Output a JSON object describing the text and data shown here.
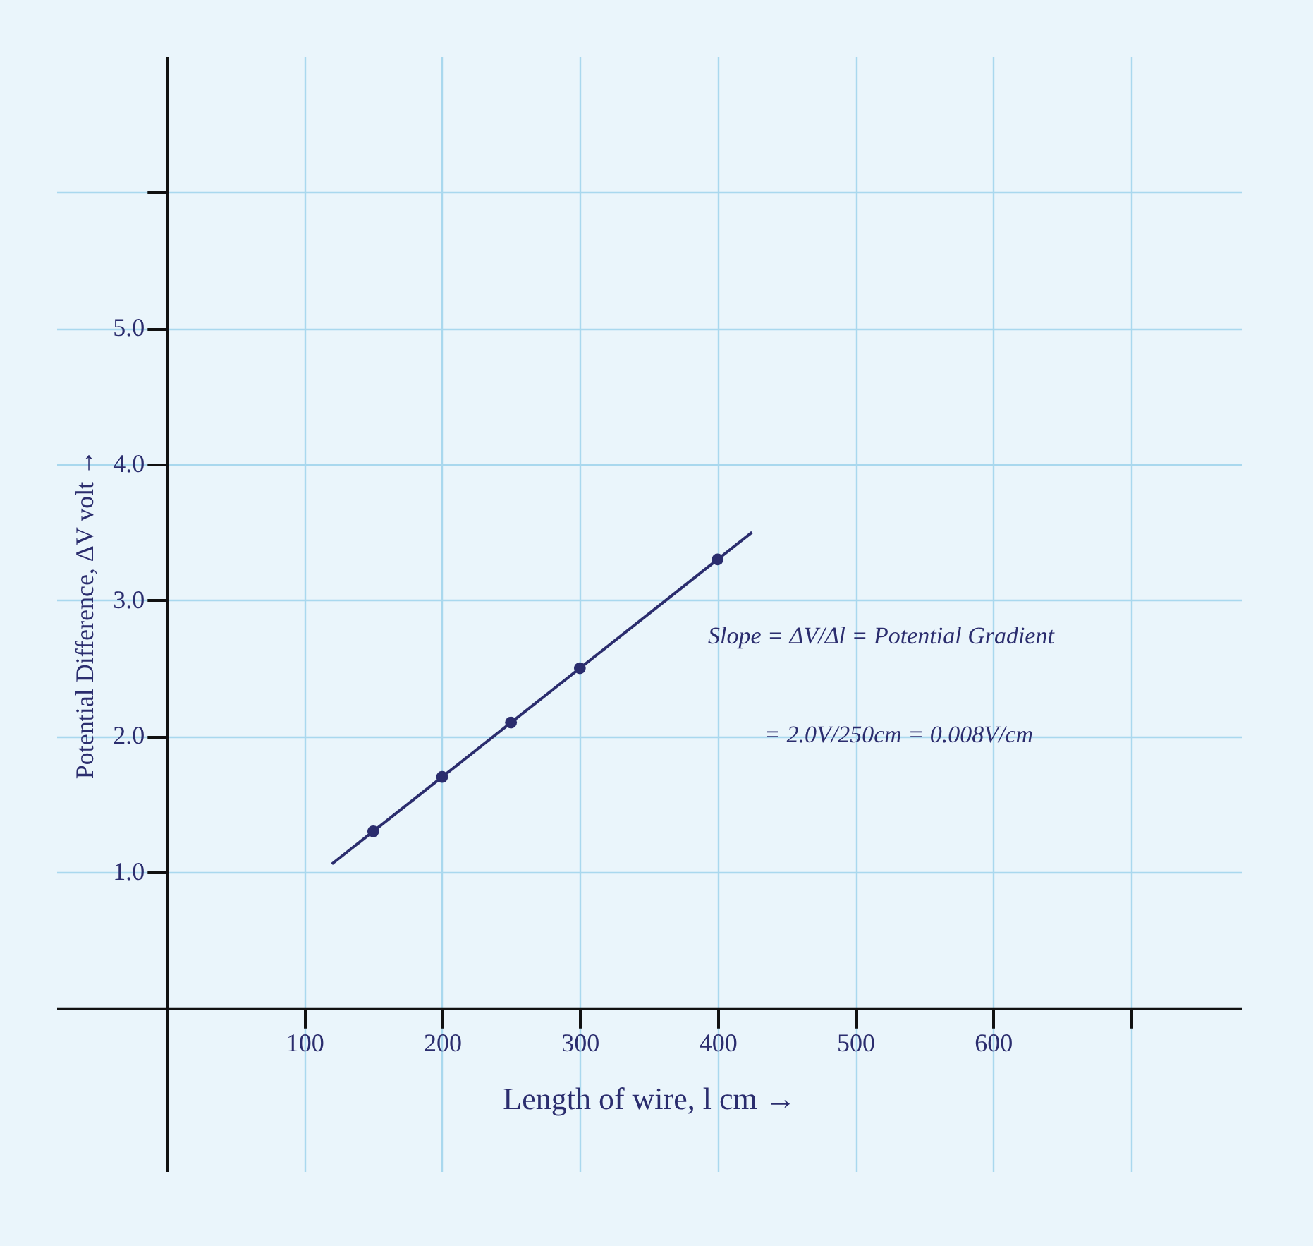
{
  "chart_data": {
    "type": "scatter",
    "xlabel": "Length of wire, l cm →",
    "ylabel": "Potential Difference, ΔV volt →",
    "xlim": [
      -80,
      780
    ],
    "ylim": [
      -1.2,
      7
    ],
    "xticks": [
      100,
      200,
      300,
      400,
      500,
      600,
      {
        "value": 700,
        "label": null
      }
    ],
    "yticks": [
      {
        "value": 1,
        "label": "1.0"
      },
      {
        "value": 2,
        "label": "2.0"
      },
      {
        "value": 3,
        "label": "3.0"
      },
      {
        "value": 4,
        "label": "4.0"
      },
      {
        "value": 5,
        "label": "5.0"
      },
      {
        "value": 6,
        "label": null
      }
    ],
    "grid": true,
    "series": [
      {
        "marker": "circle",
        "color": "#2b2d6e",
        "x": [
          150,
          200,
          250,
          300,
          400
        ],
        "values": [
          1.3,
          1.7,
          2.1,
          2.5,
          3.3
        ]
      },
      {
        "type": "line",
        "color": "#2b2d6e",
        "x": [
          120,
          425
        ],
        "values": [
          1.06,
          3.5
        ]
      }
    ],
    "annotations": [
      "Slope = ΔV/Δl = Potential Gradient",
      "= 2.0V/250cm = 0.008V/cm"
    ]
  }
}
